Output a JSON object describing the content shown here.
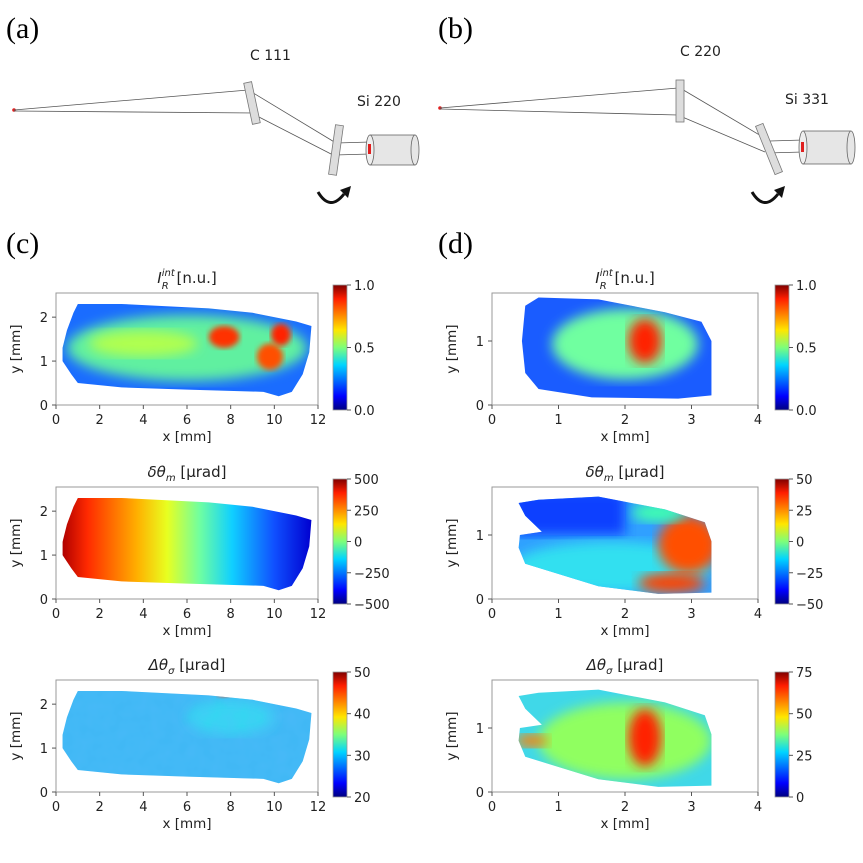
{
  "panel_labels": [
    "(a)",
    "(b)",
    "(c)",
    "(d)"
  ],
  "diagram_a": {
    "crystal1": "C 111",
    "crystal2": "Si 220"
  },
  "diagram_b": {
    "crystal1": "C 220",
    "crystal2": "Si 331"
  },
  "colors": {
    "frame": "#888888",
    "beam": "#555555",
    "source": "#e02020",
    "detector": "#e6e6e6"
  },
  "chart_data": [
    {
      "type": "heatmap",
      "panel": "c",
      "title": {
        "sym": "I",
        "sub": "R",
        "sup": "int",
        "unit": " [n.u.]"
      },
      "xlabel": "x [mm]",
      "ylabel": "y [mm]",
      "xlim": [
        0,
        12
      ],
      "ylim": [
        0,
        2.55
      ],
      "xticks": [
        "0",
        "2",
        "4",
        "6",
        "8",
        "10",
        "12"
      ],
      "yticks": [
        "0",
        "1",
        "2"
      ],
      "colorbar": {
        "cmap": "jet",
        "range": [
          0,
          1
        ],
        "ticks": [
          "0.0",
          "0.5",
          "1.0"
        ]
      }
    },
    {
      "type": "heatmap",
      "panel": "c",
      "title": {
        "sym": "δθ",
        "sub": "m",
        "sup": "",
        "unit": " [μrad]"
      },
      "xlabel": "x [mm]",
      "ylabel": "y [mm]",
      "xlim": [
        0,
        12
      ],
      "ylim": [
        0,
        2.55
      ],
      "xticks": [
        "0",
        "2",
        "4",
        "6",
        "8",
        "10",
        "12"
      ],
      "yticks": [
        "0",
        "1",
        "2"
      ],
      "colorbar": {
        "cmap": "jet",
        "range": [
          -500,
          500
        ],
        "ticks": [
          "−500",
          "−250",
          "0",
          "250",
          "500"
        ]
      }
    },
    {
      "type": "heatmap",
      "panel": "c",
      "title": {
        "sym": "Δθ",
        "sub": "σ",
        "sup": "",
        "unit": " [μrad]"
      },
      "xlabel": "x [mm]",
      "ylabel": "y [mm]",
      "xlim": [
        0,
        12
      ],
      "ylim": [
        0,
        2.55
      ],
      "xticks": [
        "0",
        "2",
        "4",
        "6",
        "8",
        "10",
        "12"
      ],
      "yticks": [
        "0",
        "1",
        "2"
      ],
      "colorbar": {
        "cmap": "jet",
        "range": [
          20,
          50
        ],
        "ticks": [
          "20",
          "30",
          "40",
          "50"
        ]
      }
    },
    {
      "type": "heatmap",
      "panel": "d",
      "title": {
        "sym": "I",
        "sub": "R",
        "sup": "int",
        "unit": " [n.u.]"
      },
      "xlabel": "x [mm]",
      "ylabel": "y [mm]",
      "xlim": [
        0,
        4
      ],
      "ylim": [
        0,
        1.75
      ],
      "xticks": [
        "0",
        "1",
        "2",
        "3",
        "4"
      ],
      "yticks": [
        "0",
        "1"
      ],
      "colorbar": {
        "cmap": "jet",
        "range": [
          0,
          1
        ],
        "ticks": [
          "0.0",
          "0.5",
          "1.0"
        ]
      }
    },
    {
      "type": "heatmap",
      "panel": "d",
      "title": {
        "sym": "δθ",
        "sub": "m",
        "sup": "",
        "unit": " [μrad]"
      },
      "xlabel": "x [mm]",
      "ylabel": "y [mm]",
      "xlim": [
        0,
        4
      ],
      "ylim": [
        0,
        1.75
      ],
      "xticks": [
        "0",
        "1",
        "2",
        "3",
        "4"
      ],
      "yticks": [
        "0",
        "1"
      ],
      "colorbar": {
        "cmap": "jet",
        "range": [
          -50,
          50
        ],
        "ticks": [
          "−50",
          "−25",
          "0",
          "25",
          "50"
        ]
      }
    },
    {
      "type": "heatmap",
      "panel": "d",
      "title": {
        "sym": "Δθ",
        "sub": "σ",
        "sup": "",
        "unit": " [μrad]"
      },
      "xlabel": "x [mm]",
      "ylabel": "y [mm]",
      "xlim": [
        0,
        4
      ],
      "ylim": [
        0,
        1.75
      ],
      "xticks": [
        "0",
        "1",
        "2",
        "3",
        "4"
      ],
      "yticks": [
        "0",
        "1"
      ],
      "colorbar": {
        "cmap": "jet",
        "range": [
          0,
          75
        ],
        "ticks": [
          "0",
          "25",
          "50",
          "75"
        ]
      }
    }
  ]
}
